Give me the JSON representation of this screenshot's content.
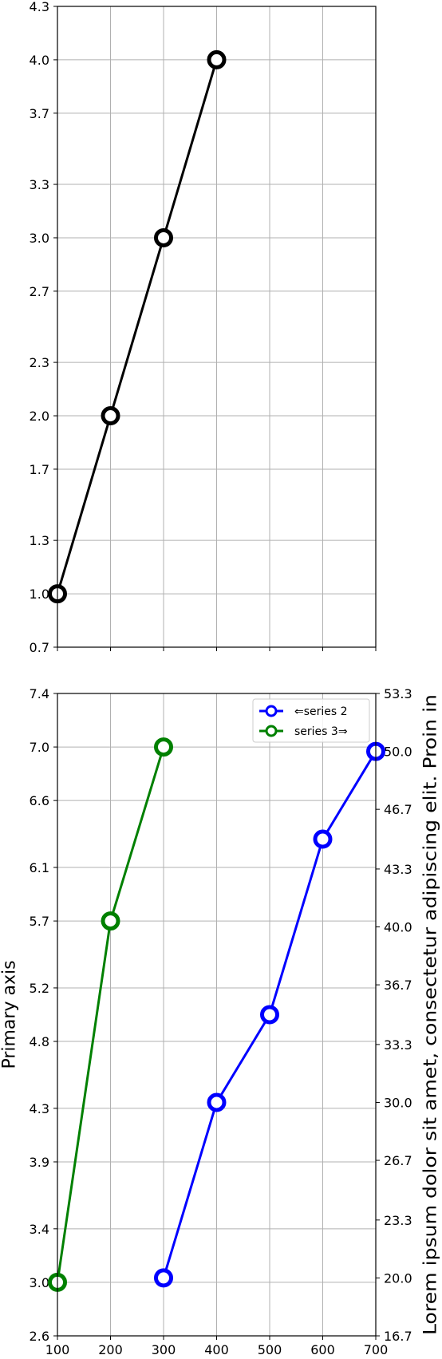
{
  "colors": {
    "series_1": "#000000",
    "series_2": "#0000ff",
    "series_3": "#008000",
    "grid": "#b0b0b0",
    "frame": "#000000"
  },
  "chart_data": [
    {
      "type": "line",
      "x": [
        100,
        200,
        300,
        400
      ],
      "y": [
        1.0,
        2.0,
        3.0,
        4.0
      ],
      "xlim": [
        100,
        700
      ],
      "ylim": [
        0.7,
        4.3
      ],
      "yticks": [
        "0.7",
        "1.0",
        "1.3",
        "1.7",
        "2.0",
        "2.3",
        "2.7",
        "3.0",
        "3.3",
        "3.7",
        "4.0",
        "4.3"
      ],
      "grid": true,
      "marker": "hollow-circle"
    },
    {
      "type": "line",
      "xlim": [
        100,
        700
      ],
      "xticks": [
        "100",
        "200",
        "300",
        "400",
        "500",
        "600",
        "700"
      ],
      "ylabel": "Primary axis",
      "ylim": [
        2.6,
        7.4
      ],
      "yticks": [
        "2.6",
        "3.0",
        "3.4",
        "3.9",
        "4.3",
        "4.8",
        "5.2",
        "5.7",
        "6.1",
        "6.6",
        "7.0",
        "7.4"
      ],
      "ylabel_right": "Lorem ipsum dolor sit amet, consectetur adipiscing elit. Proin in",
      "ylim_right": [
        16.7,
        53.3
      ],
      "yticks_right": [
        "16.7",
        "20.0",
        "23.3",
        "26.7",
        "30.0",
        "33.3",
        "36.7",
        "40.0",
        "43.3",
        "46.7",
        "50.0",
        "53.3"
      ],
      "grid": true,
      "legend_position": "top-right",
      "series": [
        {
          "name": "⇐series 2",
          "axis": "right",
          "x": [
            300,
            400,
            500,
            600,
            700
          ],
          "y": [
            20,
            30,
            35,
            45,
            50
          ]
        },
        {
          "name": "series 3⇒",
          "axis": "left",
          "x": [
            100,
            200,
            300
          ],
          "y": [
            3.0,
            5.7,
            7.0
          ]
        }
      ]
    }
  ]
}
